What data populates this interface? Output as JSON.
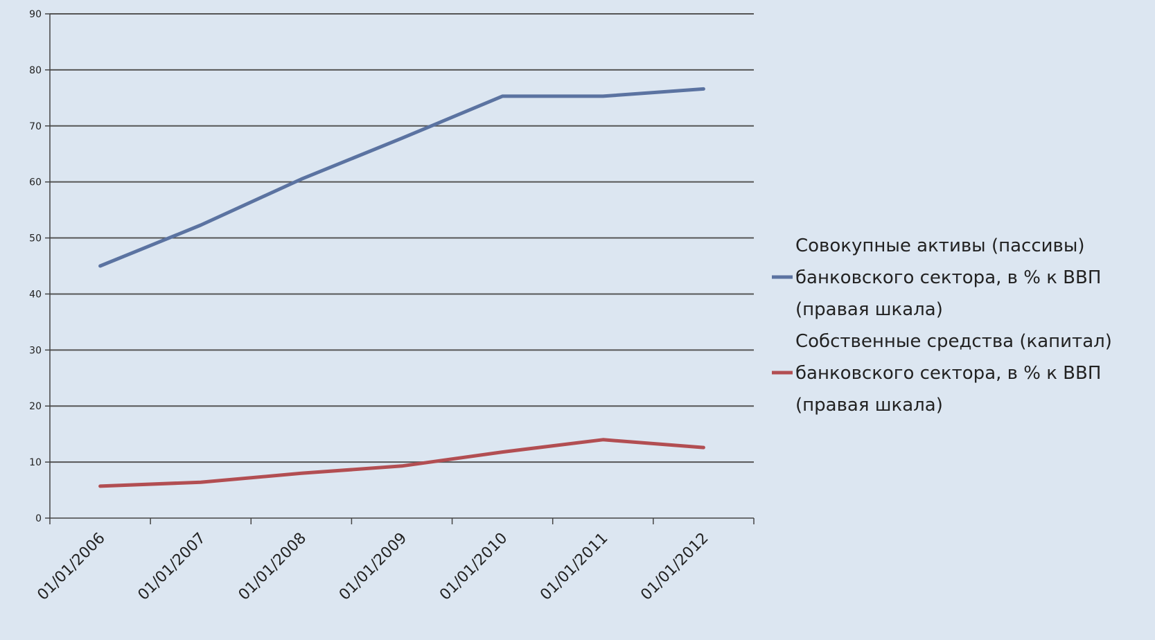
{
  "chart_data": {
    "type": "line",
    "title": "",
    "xlabel": "",
    "ylabel": "",
    "categories": [
      "01/01/2006",
      "01/01/2007",
      "01/01/2008",
      "01/01/2009",
      "01/01/2010",
      "01/01/2011",
      "01/01/2012"
    ],
    "yticks": [
      "0",
      "10",
      "20",
      "30",
      "40",
      "50",
      "60",
      "70",
      "80",
      "90"
    ],
    "ylim": [
      0,
      90
    ],
    "grid": true,
    "legend_position": "right",
    "series": [
      {
        "name": "Совокупные активы (пассивы) банковского сектора, в % к ВВП (правая шкала)",
        "legend_lines": [
          "Совокупные активы (пассивы)",
          "банковского сектора, в % к ВВП",
          "(правая шкала)"
        ],
        "color": "#5b73a1",
        "values": [
          45,
          52.3,
          60.5,
          67.8,
          75.3,
          75.3,
          76.6
        ]
      },
      {
        "name": "Собственные средства (капитал) банковского сектора, в % к ВВП (правая шкала)",
        "legend_lines": [
          "Собственные средства (капитал)",
          "банковского сектора, в % к ВВП",
          "(правая шкала)"
        ],
        "color": "#b24e52",
        "values": [
          5.7,
          6.4,
          8,
          9.3,
          11.8,
          14,
          12.6
        ]
      }
    ]
  }
}
